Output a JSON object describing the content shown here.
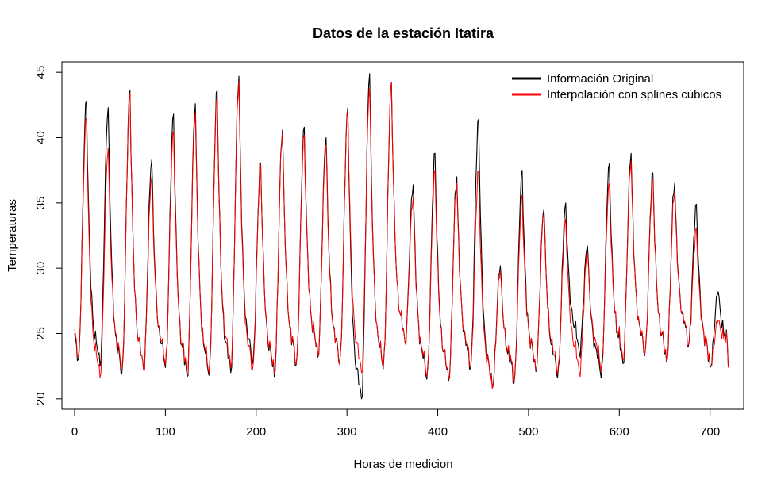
{
  "chart_data": {
    "type": "line",
    "title": "Datos de la estación Itatira",
    "xlabel": "Horas de medicion",
    "ylabel": "Temperaturas",
    "xlim": [
      -14,
      737
    ],
    "ylim": [
      19.2,
      45.8
    ],
    "x_ticks": [
      0,
      100,
      200,
      300,
      400,
      500,
      600,
      700
    ],
    "y_ticks": [
      20,
      25,
      30,
      35,
      40,
      45
    ],
    "legend_position": "top-right",
    "grid": false,
    "x_step_hours": 1,
    "series": [
      {
        "name": "Información Original",
        "color": "#000000",
        "days": [
          {
            "min": 23.0,
            "max": 42.8
          },
          {
            "min": 22.5,
            "max": 42.3
          },
          {
            "min": 21.9,
            "max": 43.6
          },
          {
            "min": 22.2,
            "max": 38.3
          },
          {
            "min": 22.4,
            "max": 41.8
          },
          {
            "min": 21.7,
            "max": 42.6
          },
          {
            "min": 21.8,
            "max": 43.6
          },
          {
            "min": 22.0,
            "max": 44.7
          },
          {
            "min": 22.7,
            "max": 38.0
          },
          {
            "min": 21.7,
            "max": 40.6
          },
          {
            "min": 22.6,
            "max": 40.8
          },
          {
            "min": 23.2,
            "max": 40.0
          },
          {
            "min": 22.7,
            "max": 42.3
          },
          {
            "min": 20.0,
            "max": 44.9
          },
          {
            "min": 22.3,
            "max": 44.2
          },
          {
            "min": 24.3,
            "max": 36.4
          },
          {
            "min": 21.5,
            "max": 38.8
          },
          {
            "min": 21.4,
            "max": 37.0
          },
          {
            "min": 22.3,
            "max": 41.4
          },
          {
            "min": 20.9,
            "max": 30.2
          },
          {
            "min": 21.2,
            "max": 37.5
          },
          {
            "min": 22.1,
            "max": 34.5
          },
          {
            "min": 21.6,
            "max": 35.0
          },
          {
            "min": 23.5,
            "max": 31.7
          },
          {
            "min": 21.6,
            "max": 38.0
          },
          {
            "min": 22.7,
            "max": 38.8
          },
          {
            "min": 23.3,
            "max": 37.3
          },
          {
            "min": 22.8,
            "max": 36.5
          },
          {
            "min": 24.0,
            "max": 34.9
          },
          {
            "min": 22.4,
            "max": 28.2
          }
        ],
        "end_value": 22.6
      },
      {
        "name": "Interpolación con splines cúbicos",
        "color": "#ff0000",
        "days": [
          {
            "min": 23.3,
            "max": 41.5
          },
          {
            "min": 21.6,
            "max": 39.2
          },
          {
            "min": 22.2,
            "max": 43.4
          },
          {
            "min": 22.2,
            "max": 37.0
          },
          {
            "min": 22.6,
            "max": 40.5
          },
          {
            "min": 21.9,
            "max": 41.9
          },
          {
            "min": 22.0,
            "max": 43.0
          },
          {
            "min": 22.4,
            "max": 44.3
          },
          {
            "min": 22.2,
            "max": 37.9
          },
          {
            "min": 21.9,
            "max": 40.4
          },
          {
            "min": 22.7,
            "max": 40.2
          },
          {
            "min": 23.3,
            "max": 39.4
          },
          {
            "min": 22.6,
            "max": 42.1
          },
          {
            "min": 22.0,
            "max": 43.8
          },
          {
            "min": 22.4,
            "max": 44.2
          },
          {
            "min": 24.3,
            "max": 35.4
          },
          {
            "min": 21.7,
            "max": 37.4
          },
          {
            "min": 21.5,
            "max": 36.5
          },
          {
            "min": 22.5,
            "max": 37.4
          },
          {
            "min": 20.8,
            "max": 29.8
          },
          {
            "min": 21.4,
            "max": 35.6
          },
          {
            "min": 22.2,
            "max": 34.2
          },
          {
            "min": 21.9,
            "max": 33.8
          },
          {
            "min": 22.0,
            "max": 31.2
          },
          {
            "min": 22.1,
            "max": 36.5
          },
          {
            "min": 23.0,
            "max": 38.2
          },
          {
            "min": 23.4,
            "max": 36.8
          },
          {
            "min": 22.9,
            "max": 35.9
          },
          {
            "min": 24.1,
            "max": 33.0
          },
          {
            "min": 22.5,
            "max": 26.0
          }
        ],
        "end_value": 22.5
      }
    ]
  }
}
